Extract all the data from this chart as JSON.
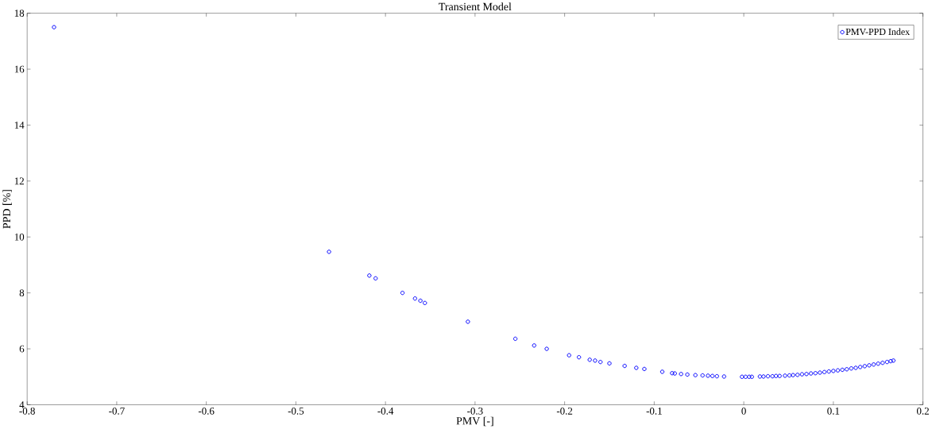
{
  "chart_data": {
    "type": "scatter",
    "title": "Transient Model",
    "xlabel": "PMV [-]",
    "ylabel": "PPD [%]",
    "xlim": [
      -0.8,
      0.2
    ],
    "ylim": [
      4,
      18
    ],
    "xticks": [
      -0.8,
      -0.7,
      -0.6,
      -0.5,
      -0.4,
      -0.3,
      -0.2,
      -0.1,
      0,
      0.1,
      0.2
    ],
    "yticks": [
      4,
      6,
      8,
      10,
      12,
      14,
      16,
      18
    ],
    "legend": "top right",
    "marker": "circle",
    "grid": false,
    "series": [
      {
        "name": "PMV-PPD Index",
        "color": "#0000ff",
        "x": [
          -0.77,
          -0.463,
          -0.418,
          -0.411,
          -0.381,
          -0.367,
          -0.361,
          -0.356,
          -0.308,
          -0.255,
          -0.234,
          -0.22,
          -0.195,
          -0.184,
          -0.172,
          -0.166,
          -0.16,
          -0.15,
          -0.133,
          -0.12,
          -0.111,
          -0.091,
          -0.08,
          -0.077,
          -0.07,
          -0.063,
          -0.054,
          -0.046,
          -0.04,
          -0.035,
          -0.03,
          -0.022,
          -0.002,
          0.002,
          0.006,
          0.009,
          0.018,
          0.022,
          0.027,
          0.032,
          0.036,
          0.04,
          0.046,
          0.051,
          0.055,
          0.06,
          0.065,
          0.07,
          0.075,
          0.08,
          0.085,
          0.09,
          0.095,
          0.1,
          0.105,
          0.11,
          0.115,
          0.12,
          0.125,
          0.13,
          0.135,
          0.14,
          0.145,
          0.15,
          0.155,
          0.16,
          0.164,
          0.167
        ],
        "values": [
          17.5,
          9.47,
          8.62,
          8.52,
          8.0,
          7.8,
          7.72,
          7.64,
          6.97,
          6.36,
          6.12,
          6.0,
          5.77,
          5.7,
          5.61,
          5.58,
          5.53,
          5.48,
          5.39,
          5.32,
          5.28,
          5.18,
          5.13,
          5.12,
          5.1,
          5.08,
          5.06,
          5.05,
          5.04,
          5.03,
          5.02,
          5.01,
          5.0,
          5.0,
          5.0,
          5.0,
          5.01,
          5.01,
          5.02,
          5.02,
          5.03,
          5.03,
          5.04,
          5.05,
          5.06,
          5.07,
          5.09,
          5.1,
          5.12,
          5.13,
          5.15,
          5.17,
          5.19,
          5.21,
          5.23,
          5.25,
          5.27,
          5.3,
          5.32,
          5.35,
          5.38,
          5.41,
          5.44,
          5.47,
          5.5,
          5.53,
          5.56,
          5.58
        ]
      }
    ]
  }
}
